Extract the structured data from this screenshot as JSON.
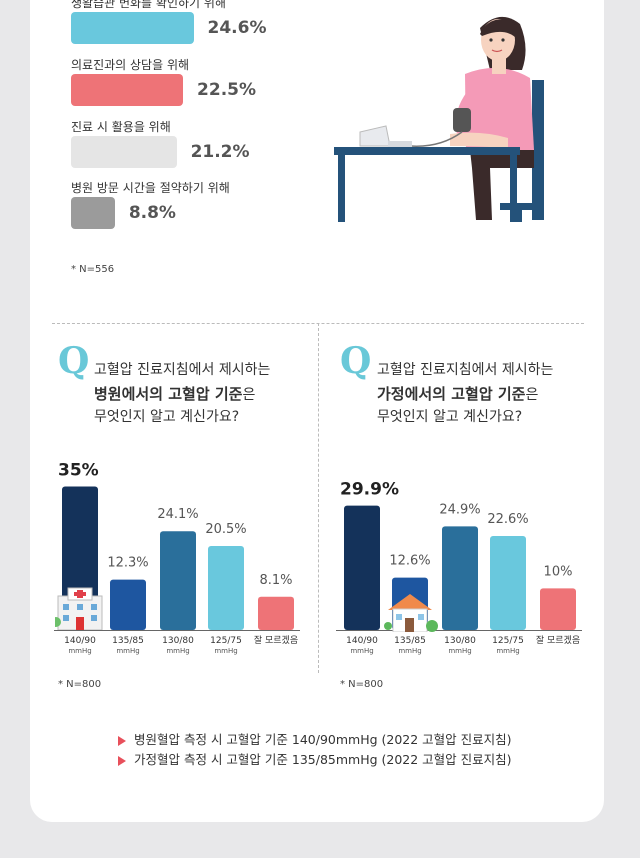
{
  "top_chart": {
    "items": [
      {
        "label": "생활습관 변화를 확인하기 위해",
        "value": 24.6,
        "value_text": "24.6%",
        "color": "#69c8dd"
      },
      {
        "label": "의료진과의 상담을 위해",
        "value": 22.5,
        "value_text": "22.5%",
        "color": "#ee7377"
      },
      {
        "label": "진료 시 활용을 위해",
        "value": 21.2,
        "value_text": "21.2%",
        "color": "#e5e5e5"
      },
      {
        "label": "병원 방문 시간을 절약하기 위해",
        "value": 8.8,
        "value_text": "8.8%",
        "color": "#9b9b9b"
      }
    ],
    "note": "* N=556"
  },
  "left_question": {
    "q": "Q",
    "line1": "고혈압 진료지침에서 제시하는",
    "line2_bold": "병원에서의 고혈압 기준",
    "line2_suffix": "은",
    "line3": "무엇인지 알고 계신가요?"
  },
  "right_question": {
    "q": "Q",
    "line1": "고혈압 진료지침에서 제시하는",
    "line2_bold": "가정에서의 고혈압 기준",
    "line2_suffix": "은",
    "line3": "무엇인지 알고 계신가요?"
  },
  "chart_data": [
    {
      "type": "bar",
      "categories": [
        "140/90",
        "135/85",
        "130/80",
        "125/75",
        "잘 모르겠음"
      ],
      "units": [
        "mmHg",
        "mmHg",
        "mmHg",
        "mmHg",
        ""
      ],
      "values": [
        35,
        12.3,
        24.1,
        20.5,
        8.1
      ],
      "value_labels": [
        "35%",
        "12.3%",
        "24.1%",
        "20.5%",
        "8.1%"
      ],
      "colors": [
        "#14325a",
        "#1e56a0",
        "#2a6f9b",
        "#69c8dd",
        "#ee7377"
      ],
      "note": "* N=800"
    },
    {
      "type": "bar",
      "categories": [
        "140/90",
        "135/85",
        "130/80",
        "125/75",
        "잘 모르겠음"
      ],
      "units": [
        "mmHg",
        "mmHg",
        "mmHg",
        "mmHg",
        ""
      ],
      "values": [
        29.9,
        12.6,
        24.9,
        22.6,
        10
      ],
      "value_labels": [
        "29.9%",
        "12.6%",
        "24.9%",
        "22.6%",
        "10%"
      ],
      "colors": [
        "#14325a",
        "#1e56a0",
        "#2a6f9b",
        "#69c8dd",
        "#ee7377"
      ],
      "note": "* N=800"
    }
  ],
  "footer": {
    "line1": "병원혈압 측정 시 고혈압 기준 140/90mmHg (2022 고혈압 진료지침)",
    "line2": "가정혈압 측정 시 고혈압 기준 135/85mmHg (2022 고혈압 진료지침)"
  }
}
